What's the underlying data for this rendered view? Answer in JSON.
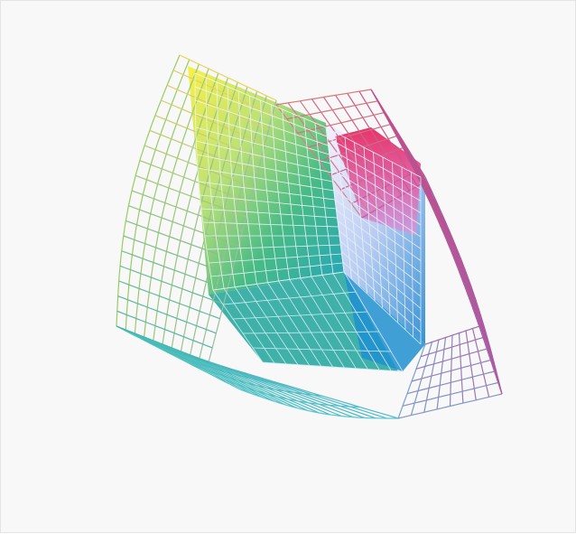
{
  "figure": {
    "description_visible_text": "",
    "background_color": "#f8f8f8",
    "border_color": "#e4e4e4",
    "outer_wireframe": {
      "corner_colors": {
        "top": "#f0e020",
        "top_right": "#d0507a",
        "right": "#b0509a",
        "bottom": "#40c8d8",
        "left": "#40b8a0"
      }
    },
    "inner_solid": {
      "corner_colors": {
        "top": "#f8e840",
        "right": "#e01058",
        "bottom": "#10a8c8",
        "left": "#30a060"
      }
    }
  }
}
